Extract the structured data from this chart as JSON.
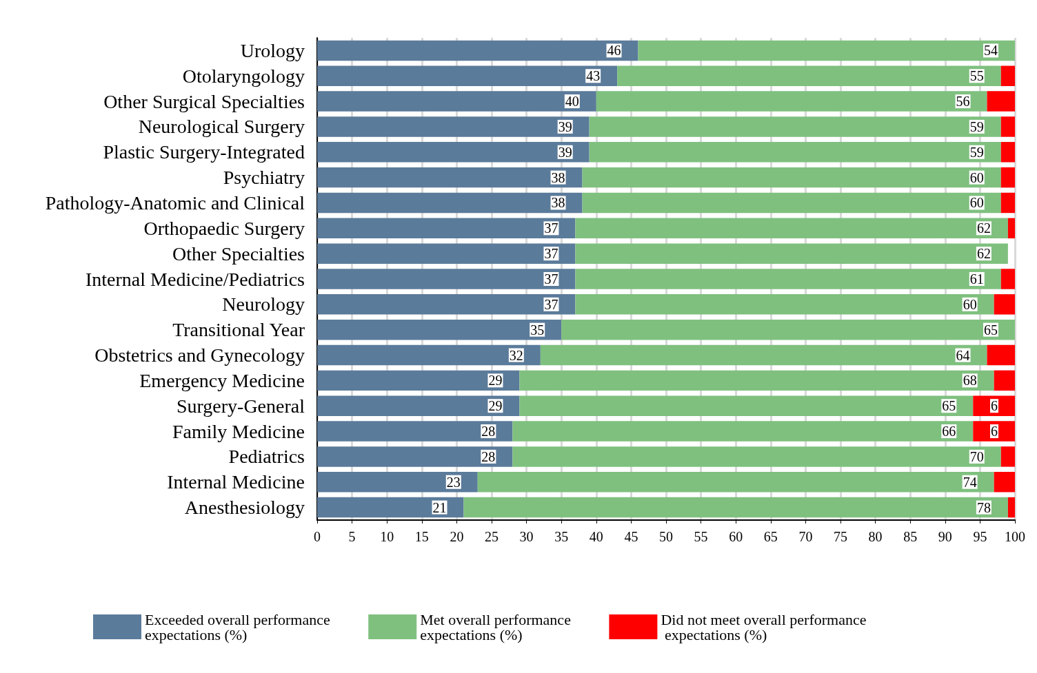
{
  "chart_data": {
    "type": "bar",
    "orientation": "horizontal",
    "stacked": true,
    "categories": [
      "Urology",
      "Otolaryngology",
      "Other Surgical Specialties",
      "Neurological Surgery",
      "Plastic Surgery-Integrated",
      "Psychiatry",
      "Pathology-Anatomic and Clinical",
      "Orthopaedic Surgery",
      "Other Specialties",
      "Internal Medicine/Pediatrics",
      "Neurology",
      "Transitional Year",
      "Obstetrics and Gynecology",
      "Emergency Medicine",
      "Surgery-General",
      "Family Medicine",
      "Pediatrics",
      "Internal Medicine",
      "Anesthesiology"
    ],
    "series": [
      {
        "name": "Exceeded overall performance expectations (%)",
        "color": "#5b7b9a",
        "values": [
          46,
          43,
          40,
          39,
          39,
          38,
          38,
          37,
          37,
          37,
          37,
          35,
          32,
          29,
          29,
          28,
          28,
          23,
          21
        ],
        "value_labels": [
          "46",
          "43",
          "40",
          "39",
          "39",
          "38",
          "38",
          "37",
          "37",
          "37",
          "37",
          "35",
          "32",
          "29",
          "29",
          "28",
          "28",
          "23",
          "21"
        ]
      },
      {
        "name": "Met overall performance expectations (%)",
        "color": "#7fc07f",
        "values": [
          54,
          55,
          56,
          59,
          59,
          60,
          60,
          62,
          62,
          61,
          60,
          65,
          64,
          68,
          65,
          66,
          70,
          74,
          78
        ],
        "value_labels": [
          "54",
          "55",
          "56",
          "59",
          "59",
          "60",
          "60",
          "62",
          "62",
          "61",
          "60",
          "65",
          "64",
          "68",
          "65",
          "66",
          "70",
          "74",
          "78"
        ]
      },
      {
        "name": "Did not meet overall performance expectations (%)",
        "color": "#ff0000",
        "values": [
          null,
          2,
          4,
          2,
          2,
          2,
          2,
          1,
          null,
          2,
          3,
          null,
          4,
          3,
          6,
          6,
          2,
          3,
          1
        ],
        "value_labels": [
          null,
          null,
          null,
          null,
          null,
          null,
          null,
          null,
          null,
          null,
          null,
          null,
          null,
          null,
          "6",
          "6",
          null,
          null,
          null
        ]
      }
    ],
    "xlim": [
      0,
      100
    ],
    "xticks": [
      0,
      5,
      10,
      15,
      20,
      25,
      30,
      35,
      40,
      45,
      50,
      55,
      60,
      65,
      70,
      75,
      80,
      85,
      90,
      95,
      100
    ],
    "grid": "x",
    "legend": "bottom"
  }
}
